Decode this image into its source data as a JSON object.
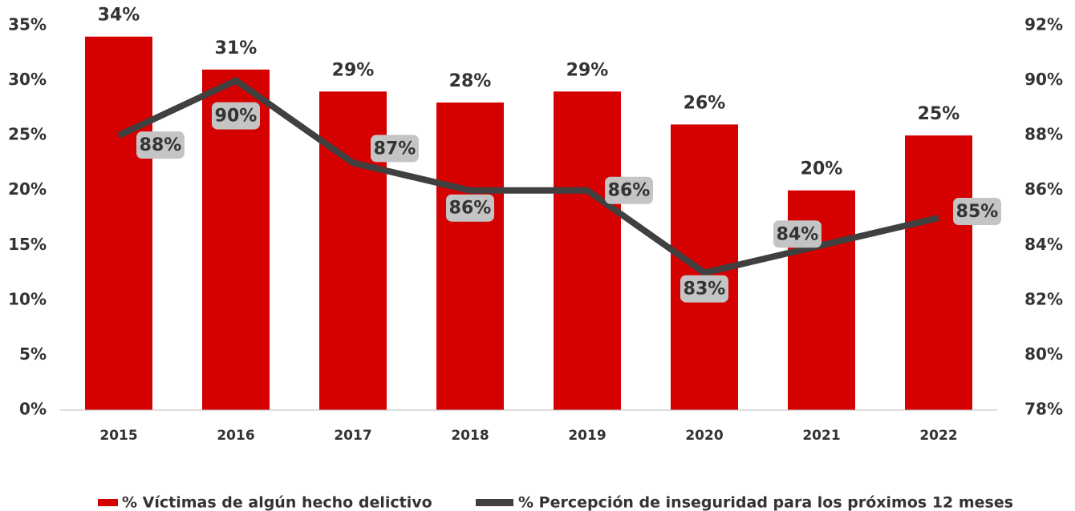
{
  "chart_data": {
    "type": "bar_line",
    "categories": [
      "2015",
      "2016",
      "2017",
      "2018",
      "2019",
      "2020",
      "2021",
      "2022"
    ],
    "series": [
      {
        "name": "% Víctimas de algún hecho delictivo",
        "type": "bar",
        "color": "#d50000",
        "axis": "y",
        "values": [
          34,
          31,
          29,
          28,
          29,
          26,
          20,
          25
        ],
        "value_labels": [
          "34%",
          "31%",
          "29%",
          "28%",
          "29%",
          "26%",
          "20%",
          "25%"
        ]
      },
      {
        "name": "% Percepción de inseguridad para los próximos 12 meses",
        "type": "line",
        "color": "#404040",
        "axis": "y2",
        "values": [
          88,
          90,
          87,
          86,
          86,
          83,
          84,
          85
        ],
        "value_labels": [
          "88%",
          "90%",
          "87%",
          "86%",
          "86%",
          "83%",
          "84%",
          "85%"
        ]
      }
    ],
    "ylim": [
      0,
      35
    ],
    "yticks": [
      {
        "value": 0,
        "label": "0%"
      },
      {
        "value": 5,
        "label": "5%"
      },
      {
        "value": 10,
        "label": "10%"
      },
      {
        "value": 15,
        "label": "15%"
      },
      {
        "value": 20,
        "label": "20%"
      },
      {
        "value": 25,
        "label": "25%"
      },
      {
        "value": 30,
        "label": "30%"
      },
      {
        "value": 35,
        "label": "35%"
      }
    ],
    "y2lim": [
      78,
      92
    ],
    "y2ticks": [
      {
        "value": 78,
        "label": "78%"
      },
      {
        "value": 80,
        "label": "80%"
      },
      {
        "value": 82,
        "label": "82%"
      },
      {
        "value": 84,
        "label": "84%"
      },
      {
        "value": 86,
        "label": "86%"
      },
      {
        "value": 88,
        "label": "88%"
      },
      {
        "value": 90,
        "label": "90%"
      },
      {
        "value": 92,
        "label": "92%"
      }
    ],
    "legend": "bottom"
  }
}
